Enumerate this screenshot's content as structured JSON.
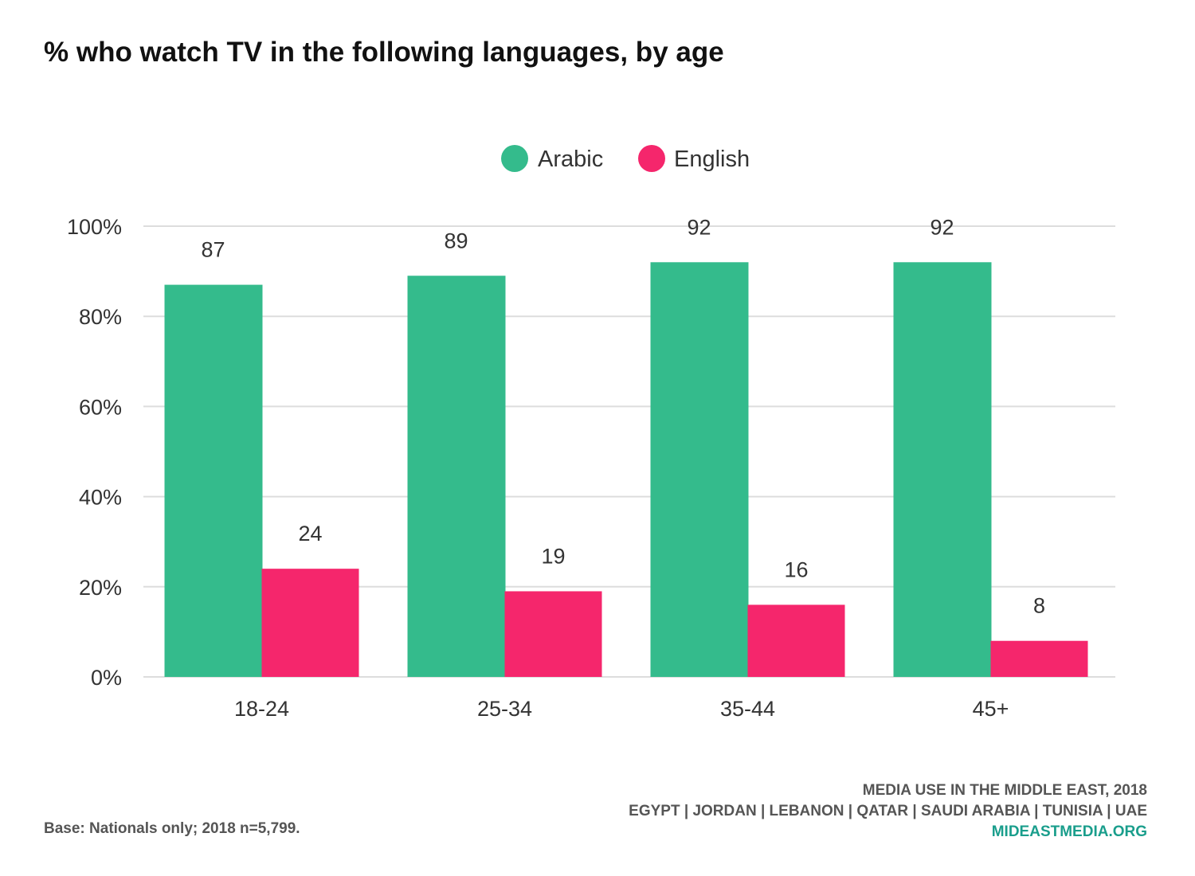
{
  "chart_data": {
    "type": "bar",
    "title": "% who watch TV in the following languages, by age",
    "categories": [
      "18-24",
      "25-34",
      "35-44",
      "45+"
    ],
    "series": [
      {
        "name": "Arabic",
        "color": "#34bb8c",
        "values": [
          87,
          89,
          92,
          92
        ]
      },
      {
        "name": "English",
        "color": "#f5266c",
        "values": [
          24,
          19,
          16,
          8
        ]
      }
    ],
    "ylim": [
      0,
      100
    ],
    "yticks": [
      0,
      20,
      40,
      60,
      80,
      100
    ],
    "ytick_labels": [
      "0%",
      "20%",
      "40%",
      "60%",
      "80%",
      "100%"
    ],
    "xlabel": "",
    "ylabel": "",
    "grid": true,
    "legend_position": "top-center"
  },
  "footer": {
    "base_note": "Base: Nationals only; 2018 n=5,799.",
    "source_line1": "MEDIA USE IN THE MIDDLE EAST, 2018",
    "source_line2": "EGYPT | JORDAN | LEBANON | QATAR | SAUDI ARABIA | TUNISIA | UAE",
    "site": "MIDEASTMEDIA.ORG"
  }
}
